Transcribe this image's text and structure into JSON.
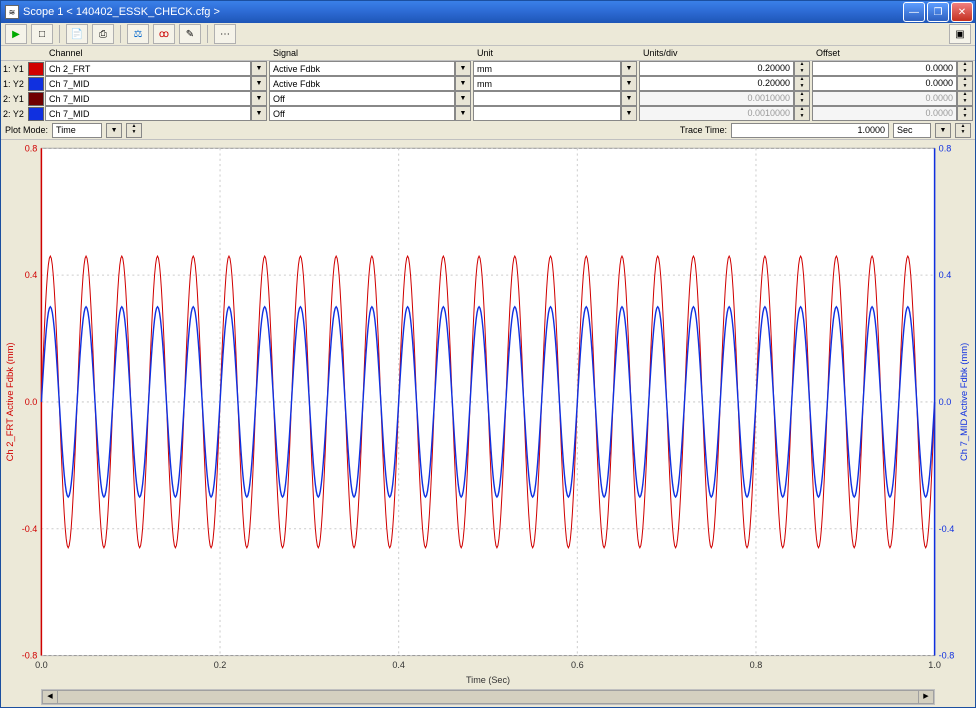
{
  "window": {
    "title": "Scope 1 < 140402_ESSK_CHECK.cfg >"
  },
  "toolbar": {
    "buttons": [
      "▶",
      "□",
      "📄",
      "⎙",
      "⚖",
      "ꝏ",
      "✎",
      "⋯"
    ]
  },
  "headers": {
    "channel": "Channel",
    "signal": "Signal",
    "unit": "Unit",
    "unitsdiv": "Units/div",
    "offset": "Offset"
  },
  "rows": [
    {
      "label": "1: Y1",
      "color": "#d00000",
      "channel": "Ch 2_FRT",
      "signal": "Active Fdbk",
      "unit": "mm",
      "unitsdiv": "0.20000",
      "offset": "0.0000",
      "enabled": true
    },
    {
      "label": "1: Y2",
      "color": "#1030e0",
      "channel": "Ch 7_MID",
      "signal": "Active Fdbk",
      "unit": "mm",
      "unitsdiv": "0.20000",
      "offset": "0.0000",
      "enabled": true
    },
    {
      "label": "2: Y1",
      "color": "#700000",
      "channel": "Ch 7_MID",
      "signal": "Off",
      "unit": "",
      "unitsdiv": "0.0010000",
      "offset": "0.0000",
      "enabled": false
    },
    {
      "label": "2: Y2",
      "color": "#1030e0",
      "channel": "Ch 7_MID",
      "signal": "Off",
      "unit": "",
      "unitsdiv": "0.0010000",
      "offset": "0.0000",
      "enabled": false
    }
  ],
  "plotmode": {
    "label": "Plot Mode:",
    "value": "Time",
    "tracetime_label": "Trace Time:",
    "tracetime_value": "1.0000",
    "tracetime_unit": "Sec"
  },
  "chart": {
    "xlabel": "Time (Sec)",
    "ylabel_left": "Ch 2_FRT Active Fdbk (mm)",
    "ylabel_right": "Ch 7_MID Active Fdbk (mm)",
    "xmin": 0.0,
    "xmax": 1.0,
    "xtick_step": 0.2,
    "ymin": -0.8,
    "ymax": 0.8,
    "ytick_step": 0.4,
    "grid_color": "#cccccc",
    "bg_color": "#ffffff",
    "left_axis_color": "#d00000",
    "right_axis_color": "#1030e0",
    "series": [
      {
        "color": "#d00000",
        "amplitude": 0.46,
        "cycles": 25,
        "width": 1
      },
      {
        "color": "#1030e0",
        "amplitude": 0.3,
        "cycles": 25,
        "width": 1.4
      }
    ]
  }
}
